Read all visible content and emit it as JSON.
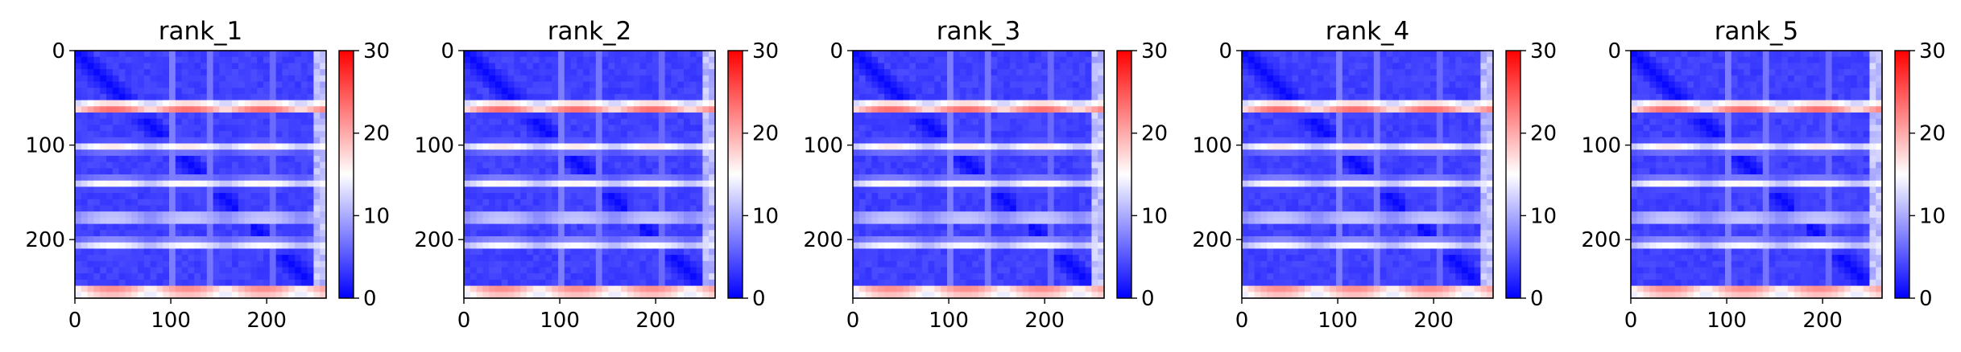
{
  "chart_data": [
    {
      "type": "heatmap",
      "title": "rank_1",
      "x_ticks": [
        0,
        100,
        200
      ],
      "y_ticks": [
        0,
        100,
        200
      ],
      "xlim": [
        0,
        262
      ],
      "ylim": [
        262,
        0
      ],
      "colorbar": {
        "ticks": [
          0,
          10,
          20,
          30
        ],
        "range": [
          0,
          30
        ],
        "colormap": "bwr"
      },
      "stripe_rows": [
        60,
        102,
        140,
        177,
        205,
        255
      ]
    },
    {
      "type": "heatmap",
      "title": "rank_2",
      "x_ticks": [
        0,
        100,
        200
      ],
      "y_ticks": [
        0,
        100,
        200
      ],
      "xlim": [
        0,
        262
      ],
      "ylim": [
        262,
        0
      ],
      "colorbar": {
        "ticks": [
          0,
          10,
          20,
          30
        ],
        "range": [
          0,
          30
        ],
        "colormap": "bwr"
      },
      "stripe_rows": [
        60,
        102,
        140,
        177,
        205,
        255
      ]
    },
    {
      "type": "heatmap",
      "title": "rank_3",
      "x_ticks": [
        0,
        100,
        200
      ],
      "y_ticks": [
        0,
        100,
        200
      ],
      "xlim": [
        0,
        262
      ],
      "ylim": [
        262,
        0
      ],
      "colorbar": {
        "ticks": [
          0,
          10,
          20,
          30
        ],
        "range": [
          0,
          30
        ],
        "colormap": "bwr"
      },
      "stripe_rows": [
        60,
        102,
        140,
        177,
        205,
        255
      ]
    },
    {
      "type": "heatmap",
      "title": "rank_4",
      "x_ticks": [
        0,
        100,
        200
      ],
      "y_ticks": [
        0,
        100,
        200
      ],
      "xlim": [
        0,
        262
      ],
      "ylim": [
        262,
        0
      ],
      "colorbar": {
        "ticks": [
          0,
          10,
          20,
          30
        ],
        "range": [
          0,
          30
        ],
        "colormap": "bwr"
      },
      "stripe_rows": [
        60,
        102,
        140,
        177,
        205,
        255
      ]
    },
    {
      "type": "heatmap",
      "title": "rank_5",
      "x_ticks": [
        0,
        100,
        200
      ],
      "y_ticks": [
        0,
        100,
        200
      ],
      "xlim": [
        0,
        262
      ],
      "ylim": [
        262,
        0
      ],
      "colorbar": {
        "ticks": [
          0,
          10,
          20,
          30
        ],
        "range": [
          0,
          30
        ],
        "colormap": "bwr"
      },
      "stripe_rows": [
        60,
        102,
        140,
        177,
        205,
        255
      ]
    }
  ],
  "colors": {
    "low": "#0000ff",
    "mid": "#ffffff",
    "high": "#ff0000"
  }
}
